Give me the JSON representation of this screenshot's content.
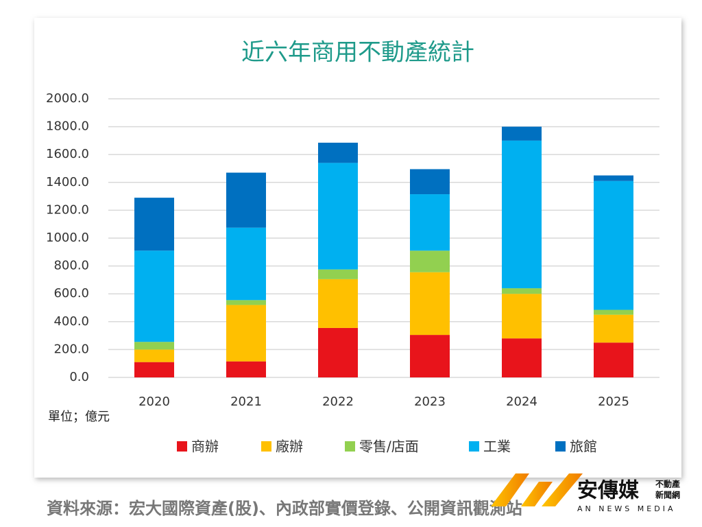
{
  "chart_data": {
    "type": "stacked_bar",
    "title": "近六年商用不動產統計",
    "categories": [
      "2020",
      "2021",
      "2022",
      "2023",
      "2024",
      "2025"
    ],
    "series": [
      {
        "name": "商辦",
        "color": "#e8141b",
        "values": [
          110,
          115,
          355,
          305,
          280,
          250
        ]
      },
      {
        "name": "廠辦",
        "color": "#ffc000",
        "values": [
          90,
          405,
          350,
          450,
          320,
          200
        ]
      },
      {
        "name": "零售/店面",
        "color": "#92d050",
        "values": [
          55,
          35,
          70,
          155,
          40,
          35
        ]
      },
      {
        "name": "工業",
        "color": "#00b0f0",
        "values": [
          655,
          520,
          765,
          405,
          1060,
          925
        ]
      },
      {
        "name": "旅館",
        "color": "#0070c0",
        "values": [
          380,
          395,
          145,
          180,
          100,
          40
        ]
      }
    ],
    "ylim": [
      0,
      2000
    ],
    "yticks": [
      {
        "value": 0,
        "label": "0.0"
      },
      {
        "value": 200,
        "label": "200.0"
      },
      {
        "value": 400,
        "label": "400.0"
      },
      {
        "value": 600,
        "label": "600.0"
      },
      {
        "value": 800,
        "label": "800.0"
      },
      {
        "value": 1000,
        "label": "1000.0"
      },
      {
        "value": 1200,
        "label": "1200.0"
      },
      {
        "value": 1400,
        "label": "1400.0"
      },
      {
        "value": 1600,
        "label": "1600.0"
      },
      {
        "value": 1800,
        "label": "1800.0"
      },
      {
        "value": 2000,
        "label": "2000.0"
      }
    ],
    "grid": true,
    "unit_note": "單位；億元",
    "source": "資料來源：宏大國際資產(股)、內政部實價登錄、公開資訊觀測站"
  },
  "brand": {
    "name": "安傳媒",
    "tag_top": "不動產",
    "tag_bottom": "新聞網",
    "english": "AN NEWS MEDIA"
  }
}
